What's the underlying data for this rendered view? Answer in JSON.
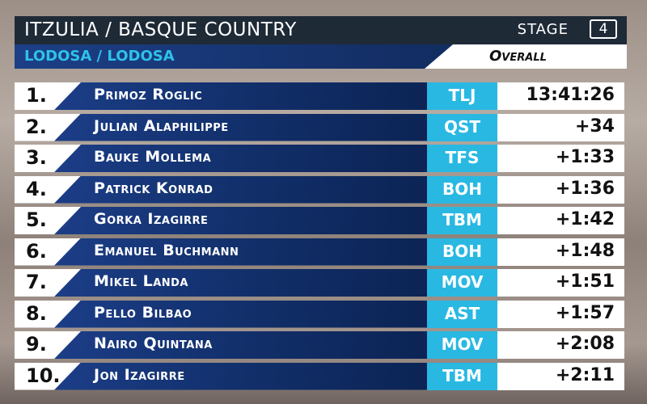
{
  "header": {
    "title": "ITZULIA / BASQUE COUNTRY",
    "stage_label": "STAGE",
    "stage_number": "4",
    "subtitle": "LODOSA / LODOSA",
    "classification": "Overall"
  },
  "table": {
    "rows": [
      {
        "rank": "1.",
        "name": "Primoz Roglic",
        "team": "TLJ",
        "time": "13:41:26"
      },
      {
        "rank": "2.",
        "name": "Julian Alaphilippe",
        "team": "QST",
        "time": "+34"
      },
      {
        "rank": "3.",
        "name": "Bauke Mollema",
        "team": "TFS",
        "time": "+1:33"
      },
      {
        "rank": "4.",
        "name": "Patrick Konrad",
        "team": "BOH",
        "time": "+1:36"
      },
      {
        "rank": "5.",
        "name": "Gorka Izagirre",
        "team": "TBM",
        "time": "+1:42"
      },
      {
        "rank": "6.",
        "name": "Emanuel Buchmann",
        "team": "BOH",
        "time": "+1:48"
      },
      {
        "rank": "7.",
        "name": "Mikel Landa",
        "team": "MOV",
        "time": "+1:51"
      },
      {
        "rank": "8.",
        "name": "Pello Bilbao",
        "team": "AST",
        "time": "+1:57"
      },
      {
        "rank": "9.",
        "name": "Nairo Quintana",
        "team": "MOV",
        "time": "+2:08"
      },
      {
        "rank": "10.",
        "name": "Jon Izagirre",
        "team": "TBM",
        "time": "+2:11"
      }
    ]
  }
}
